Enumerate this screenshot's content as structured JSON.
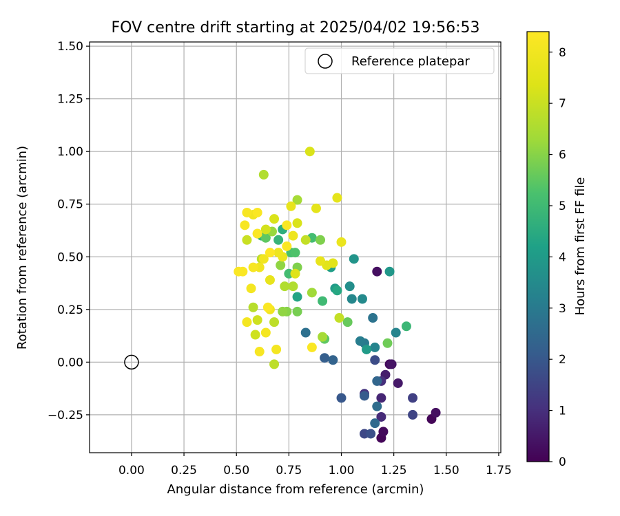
{
  "chart_data": {
    "type": "scatter",
    "title": "FOV centre drift starting at 2025/04/02 19:56:53",
    "xlabel": "Angular distance from reference (arcmin)",
    "ylabel": "Rotation from reference (arcmin)",
    "xlim": [
      -0.2,
      1.76
    ],
    "ylim": [
      -0.43,
      1.52
    ],
    "x_ticks": [
      "0.00",
      "0.25",
      "0.50",
      "0.75",
      "1.00",
      "1.25",
      "1.50",
      "1.75"
    ],
    "x_tick_values": [
      0,
      0.25,
      0.5,
      0.75,
      1.0,
      1.25,
      1.5,
      1.75
    ],
    "y_ticks": [
      "−0.25",
      "0.00",
      "0.25",
      "0.50",
      "0.75",
      "1.00",
      "1.25",
      "1.50"
    ],
    "y_tick_values": [
      -0.25,
      0,
      0.25,
      0.5,
      0.75,
      1.0,
      1.25,
      1.5
    ],
    "grid": true,
    "colormap": "viridis",
    "colorbar": {
      "label": "Hours from first FF file",
      "range": [
        0,
        8.4
      ],
      "ticks": [
        "0",
        "1",
        "2",
        "3",
        "4",
        "5",
        "6",
        "7",
        "8"
      ],
      "tick_values": [
        0,
        1,
        2,
        3,
        4,
        5,
        6,
        7,
        8
      ]
    },
    "legend": {
      "position": "top-right",
      "entries": [
        "Reference platepar"
      ]
    },
    "reference_point": {
      "x": 0.0,
      "y": 0.0
    },
    "points": [
      {
        "x": 1.17,
        "y": 0.43,
        "h": 0.3
      },
      {
        "x": 1.23,
        "y": -0.01,
        "h": 0.2
      },
      {
        "x": 1.24,
        "y": -0.01,
        "h": 0.4
      },
      {
        "x": 1.27,
        "y": -0.1,
        "h": 0.5
      },
      {
        "x": 1.21,
        "y": -0.06,
        "h": 0.6
      },
      {
        "x": 1.19,
        "y": -0.36,
        "h": 0.1
      },
      {
        "x": 1.2,
        "y": -0.33,
        "h": 0.2
      },
      {
        "x": 1.43,
        "y": -0.27,
        "h": 0.1
      },
      {
        "x": 1.45,
        "y": -0.24,
        "h": 0.3
      },
      {
        "x": 1.19,
        "y": -0.17,
        "h": 0.8
      },
      {
        "x": 1.19,
        "y": -0.26,
        "h": 0.9
      },
      {
        "x": 1.19,
        "y": -0.09,
        "h": 1.0
      },
      {
        "x": 1.11,
        "y": -0.15,
        "h": 1.1
      },
      {
        "x": 1.34,
        "y": -0.17,
        "h": 1.4
      },
      {
        "x": 1.34,
        "y": -0.25,
        "h": 1.5
      },
      {
        "x": 1.11,
        "y": -0.34,
        "h": 1.6
      },
      {
        "x": 1.14,
        "y": -0.34,
        "h": 1.8
      },
      {
        "x": 1.16,
        "y": 0.01,
        "h": 1.7
      },
      {
        "x": 1.0,
        "y": -0.17,
        "h": 2.0
      },
      {
        "x": 1.11,
        "y": -0.16,
        "h": 2.1
      },
      {
        "x": 0.92,
        "y": 0.02,
        "h": 2.2
      },
      {
        "x": 0.96,
        "y": 0.01,
        "h": 2.3
      },
      {
        "x": 1.17,
        "y": -0.09,
        "h": 2.4
      },
      {
        "x": 1.16,
        "y": -0.29,
        "h": 2.5
      },
      {
        "x": 1.17,
        "y": -0.21,
        "h": 2.6
      },
      {
        "x": 0.83,
        "y": 0.14,
        "h": 2.7
      },
      {
        "x": 1.15,
        "y": 0.21,
        "h": 2.8
      },
      {
        "x": 1.11,
        "y": 0.09,
        "h": 3.0
      },
      {
        "x": 1.09,
        "y": 0.1,
        "h": 3.1
      },
      {
        "x": 1.16,
        "y": 0.07,
        "h": 3.3
      },
      {
        "x": 1.26,
        "y": 0.14,
        "h": 3.3
      },
      {
        "x": 1.05,
        "y": 0.3,
        "h": 3.4
      },
      {
        "x": 1.1,
        "y": 0.3,
        "h": 3.5
      },
      {
        "x": 1.04,
        "y": 0.36,
        "h": 3.6
      },
      {
        "x": 1.06,
        "y": 0.49,
        "h": 3.8
      },
      {
        "x": 1.23,
        "y": 0.43,
        "h": 3.9
      },
      {
        "x": 1.12,
        "y": 0.06,
        "h": 4.0
      },
      {
        "x": 0.97,
        "y": 0.35,
        "h": 4.0
      },
      {
        "x": 0.95,
        "y": 0.45,
        "h": 4.1
      },
      {
        "x": 0.79,
        "y": 0.31,
        "h": 4.3
      },
      {
        "x": 0.98,
        "y": 0.34,
        "h": 4.4
      },
      {
        "x": 0.72,
        "y": 0.63,
        "h": 4.6
      },
      {
        "x": 0.7,
        "y": 0.58,
        "h": 4.8
      },
      {
        "x": 0.62,
        "y": 0.6,
        "h": 4.8
      },
      {
        "x": 1.31,
        "y": 0.17,
        "h": 4.9
      },
      {
        "x": 0.91,
        "y": 0.29,
        "h": 5.0
      },
      {
        "x": 0.86,
        "y": 0.59,
        "h": 5.1
      },
      {
        "x": 0.75,
        "y": 0.42,
        "h": 5.1
      },
      {
        "x": 0.76,
        "y": 0.52,
        "h": 5.2
      },
      {
        "x": 0.78,
        "y": 0.52,
        "h": 5.3
      },
      {
        "x": 0.64,
        "y": 0.59,
        "h": 5.5
      },
      {
        "x": 0.92,
        "y": 0.11,
        "h": 5.5
      },
      {
        "x": 1.03,
        "y": 0.19,
        "h": 5.6
      },
      {
        "x": 1.22,
        "y": 0.09,
        "h": 5.7
      },
      {
        "x": 0.79,
        "y": 0.24,
        "h": 5.8
      },
      {
        "x": 0.79,
        "y": 0.45,
        "h": 5.9
      },
      {
        "x": 0.9,
        "y": 0.58,
        "h": 5.9
      },
      {
        "x": 0.74,
        "y": 0.24,
        "h": 6.0
      },
      {
        "x": 0.72,
        "y": 0.24,
        "h": 6.1
      },
      {
        "x": 0.71,
        "y": 0.46,
        "h": 6.1
      },
      {
        "x": 0.67,
        "y": 0.62,
        "h": 6.2
      },
      {
        "x": 0.86,
        "y": 0.33,
        "h": 6.3
      },
      {
        "x": 0.91,
        "y": 0.12,
        "h": 6.4
      },
      {
        "x": 0.79,
        "y": 0.77,
        "h": 6.4
      },
      {
        "x": 0.63,
        "y": 0.89,
        "h": 6.6
      },
      {
        "x": 0.6,
        "y": 0.61,
        "h": 6.6
      },
      {
        "x": 0.73,
        "y": 0.36,
        "h": 6.6
      },
      {
        "x": 0.77,
        "y": 0.36,
        "h": 6.6
      },
      {
        "x": 0.58,
        "y": 0.26,
        "h": 6.7
      },
      {
        "x": 0.68,
        "y": -0.01,
        "h": 6.8
      },
      {
        "x": 0.68,
        "y": 0.19,
        "h": 6.8
      },
      {
        "x": 0.62,
        "y": 0.49,
        "h": 6.8
      },
      {
        "x": 0.83,
        "y": 0.58,
        "h": 6.9
      },
      {
        "x": 0.99,
        "y": 0.21,
        "h": 6.9
      },
      {
        "x": 0.55,
        "y": 0.58,
        "h": 7.0
      },
      {
        "x": 0.59,
        "y": 0.13,
        "h": 7.1
      },
      {
        "x": 0.6,
        "y": 0.2,
        "h": 7.1
      },
      {
        "x": 0.64,
        "y": 0.63,
        "h": 7.2
      },
      {
        "x": 0.68,
        "y": 0.68,
        "h": 7.3
      },
      {
        "x": 0.79,
        "y": 0.66,
        "h": 7.3
      },
      {
        "x": 0.85,
        "y": 1.0,
        "h": 7.3
      },
      {
        "x": 0.78,
        "y": 0.42,
        "h": 7.4
      },
      {
        "x": 0.93,
        "y": 0.46,
        "h": 7.5
      },
      {
        "x": 0.96,
        "y": 0.47,
        "h": 7.5
      },
      {
        "x": 0.88,
        "y": 0.73,
        "h": 7.6
      },
      {
        "x": 0.98,
        "y": 0.78,
        "h": 7.6
      },
      {
        "x": 0.76,
        "y": 0.74,
        "h": 7.7
      },
      {
        "x": 0.9,
        "y": 0.48,
        "h": 7.7
      },
      {
        "x": 0.66,
        "y": 0.39,
        "h": 7.7
      },
      {
        "x": 0.72,
        "y": 0.5,
        "h": 7.8
      },
      {
        "x": 1.0,
        "y": 0.57,
        "h": 7.8
      },
      {
        "x": 0.7,
        "y": 0.52,
        "h": 7.9
      },
      {
        "x": 0.77,
        "y": 0.6,
        "h": 7.9
      },
      {
        "x": 0.61,
        "y": 0.45,
        "h": 8.0
      },
      {
        "x": 0.66,
        "y": 0.25,
        "h": 8.0
      },
      {
        "x": 0.63,
        "y": 0.49,
        "h": 8.0
      },
      {
        "x": 0.58,
        "y": 0.7,
        "h": 8.0
      },
      {
        "x": 0.69,
        "y": 0.06,
        "h": 8.1
      },
      {
        "x": 0.64,
        "y": 0.14,
        "h": 8.1
      },
      {
        "x": 0.55,
        "y": 0.19,
        "h": 8.1
      },
      {
        "x": 0.57,
        "y": 0.35,
        "h": 8.1
      },
      {
        "x": 0.58,
        "y": 0.45,
        "h": 8.2
      },
      {
        "x": 0.61,
        "y": 0.05,
        "h": 8.2
      },
      {
        "x": 0.54,
        "y": 0.65,
        "h": 8.2
      },
      {
        "x": 0.55,
        "y": 0.71,
        "h": 8.2
      },
      {
        "x": 0.6,
        "y": 0.71,
        "h": 8.3
      },
      {
        "x": 0.74,
        "y": 0.65,
        "h": 8.3
      },
      {
        "x": 0.53,
        "y": 0.43,
        "h": 8.3
      },
      {
        "x": 0.51,
        "y": 0.43,
        "h": 8.3
      },
      {
        "x": 0.86,
        "y": 0.07,
        "h": 8.3
      },
      {
        "x": 0.65,
        "y": 0.26,
        "h": 8.3
      },
      {
        "x": 0.6,
        "y": 0.61,
        "h": 8.35
      },
      {
        "x": 0.74,
        "y": 0.55,
        "h": 8.35
      },
      {
        "x": 0.66,
        "y": 0.52,
        "h": 8.4
      }
    ]
  }
}
